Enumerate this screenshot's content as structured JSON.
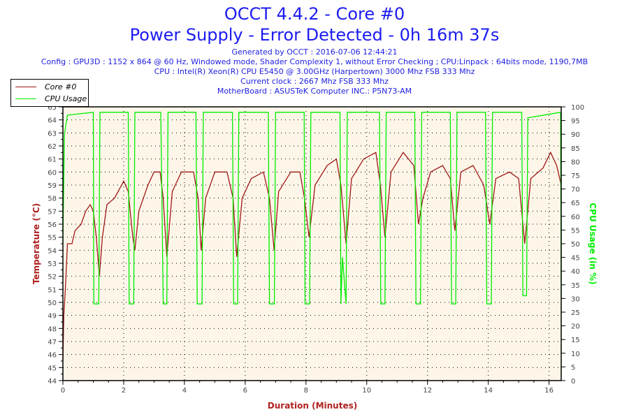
{
  "header": {
    "title": "OCCT 4.4.2 - Core #0",
    "subtitle": "Power Supply - Error Detected - 0h 16m 37s",
    "info": [
      "Generated by OCCT : 2016-07-06 12:44:21",
      "Config : GPU3D : 1152 x 864 @ 60 Hz, Windowed mode, Shader Complexity 1, without Error Checking ; CPU:Linpack : 64bits mode, 1190,7MB",
      "CPU : Intel(R) Xeon(R) CPU E5450 @ 3.00GHz (Harpertown) 3000 Mhz FSB 333 Mhz",
      "Current clock : 2667 Mhz FSB 333 Mhz",
      "MotherBoard : ASUSTeK Computer INC.: P5N73-AM"
    ]
  },
  "colors": {
    "temperature": "#a01818",
    "cpu": "#00ee00",
    "title": "#1c1cf0",
    "plot_bg": "#fdf6e8",
    "xlabel": "#b02020"
  },
  "chart_data": {
    "type": "line",
    "xlabel": "Duration (Minutes)",
    "ylabel": "Temperature (°C)",
    "y2label": "CPU Usage (in %)",
    "xlim": [
      0,
      16.4
    ],
    "ylim": [
      44,
      65
    ],
    "y2lim": [
      0,
      100
    ],
    "xticks": [
      0,
      2,
      4,
      6,
      8,
      10,
      12,
      14,
      16
    ],
    "yticks": [
      44,
      45,
      46,
      47,
      48,
      49,
      50,
      51,
      52,
      53,
      54,
      55,
      56,
      57,
      58,
      59,
      60,
      61,
      62,
      63,
      64,
      65
    ],
    "y2ticks": [
      0,
      5,
      10,
      15,
      20,
      25,
      30,
      35,
      40,
      45,
      50,
      55,
      60,
      65,
      70,
      75,
      80,
      85,
      90,
      95,
      100
    ],
    "grid": true,
    "legend": "top-left",
    "series": [
      {
        "name": "Core #0",
        "axis": "left",
        "points": [
          [
            0,
            45.5
          ],
          [
            0.03,
            49
          ],
          [
            0.08,
            51
          ],
          [
            0.15,
            54.5
          ],
          [
            0.3,
            54.5
          ],
          [
            0.4,
            55.5
          ],
          [
            0.6,
            56
          ],
          [
            0.75,
            57
          ],
          [
            0.9,
            57.5
          ],
          [
            1.0,
            57
          ],
          [
            1.1,
            55
          ],
          [
            1.2,
            52
          ],
          [
            1.3,
            55
          ],
          [
            1.45,
            57.5
          ],
          [
            1.7,
            58
          ],
          [
            2.0,
            59.3
          ],
          [
            2.15,
            58.5
          ],
          [
            2.3,
            55
          ],
          [
            2.37,
            54
          ],
          [
            2.5,
            57
          ],
          [
            2.8,
            59
          ],
          [
            3.0,
            60
          ],
          [
            3.2,
            60
          ],
          [
            3.3,
            58
          ],
          [
            3.42,
            53.5
          ],
          [
            3.6,
            58.5
          ],
          [
            3.9,
            60
          ],
          [
            4.3,
            60
          ],
          [
            4.45,
            58
          ],
          [
            4.55,
            54
          ],
          [
            4.7,
            58
          ],
          [
            5.0,
            60
          ],
          [
            5.4,
            60
          ],
          [
            5.6,
            58
          ],
          [
            5.72,
            53.5
          ],
          [
            5.9,
            58
          ],
          [
            6.2,
            59.5
          ],
          [
            6.6,
            60
          ],
          [
            6.8,
            58
          ],
          [
            6.95,
            54
          ],
          [
            7.1,
            58.5
          ],
          [
            7.5,
            60
          ],
          [
            7.8,
            60
          ],
          [
            7.95,
            58
          ],
          [
            8.1,
            55
          ],
          [
            8.3,
            59
          ],
          [
            8.7,
            60.5
          ],
          [
            9.0,
            61
          ],
          [
            9.15,
            59
          ],
          [
            9.32,
            54.5
          ],
          [
            9.5,
            59.5
          ],
          [
            9.9,
            61
          ],
          [
            10.3,
            61.5
          ],
          [
            10.45,
            59
          ],
          [
            10.6,
            55
          ],
          [
            10.8,
            60
          ],
          [
            11.2,
            61.5
          ],
          [
            11.55,
            60.5
          ],
          [
            11.7,
            56
          ],
          [
            11.85,
            58
          ],
          [
            12.1,
            60
          ],
          [
            12.5,
            60.5
          ],
          [
            12.75,
            59.5
          ],
          [
            12.9,
            55.5
          ],
          [
            13.1,
            60
          ],
          [
            13.5,
            60.5
          ],
          [
            13.85,
            59
          ],
          [
            14.05,
            56
          ],
          [
            14.25,
            59.5
          ],
          [
            14.7,
            60
          ],
          [
            15.0,
            59.5
          ],
          [
            15.2,
            54.5
          ],
          [
            15.4,
            59.5
          ],
          [
            15.8,
            60.3
          ],
          [
            16.05,
            61.5
          ],
          [
            16.25,
            60.5
          ],
          [
            16.4,
            59
          ]
        ]
      },
      {
        "name": "CPU Usage",
        "axis": "right",
        "points": [
          [
            0,
            50
          ],
          [
            0.05,
            90
          ],
          [
            0.15,
            97
          ],
          [
            1.0,
            98
          ],
          [
            1.02,
            28
          ],
          [
            1.18,
            28
          ],
          [
            1.22,
            98
          ],
          [
            2.15,
            98
          ],
          [
            2.18,
            28
          ],
          [
            2.33,
            28
          ],
          [
            2.37,
            98
          ],
          [
            3.22,
            98
          ],
          [
            3.25,
            75
          ],
          [
            3.3,
            28
          ],
          [
            3.42,
            28
          ],
          [
            3.46,
            98
          ],
          [
            4.38,
            98
          ],
          [
            4.42,
            28
          ],
          [
            4.58,
            28
          ],
          [
            4.62,
            98
          ],
          [
            5.58,
            98
          ],
          [
            5.62,
            28
          ],
          [
            5.75,
            28
          ],
          [
            5.79,
            98
          ],
          [
            6.76,
            98
          ],
          [
            6.8,
            28
          ],
          [
            6.96,
            28
          ],
          [
            7.0,
            98
          ],
          [
            7.94,
            98
          ],
          [
            7.97,
            28
          ],
          [
            8.12,
            28
          ],
          [
            8.16,
            98
          ],
          [
            9.12,
            98
          ],
          [
            9.15,
            28
          ],
          [
            9.2,
            45
          ],
          [
            9.32,
            28
          ],
          [
            9.36,
            98
          ],
          [
            10.42,
            98
          ],
          [
            10.46,
            28
          ],
          [
            10.6,
            28
          ],
          [
            10.64,
            98
          ],
          [
            11.58,
            98
          ],
          [
            11.62,
            28
          ],
          [
            11.77,
            28
          ],
          [
            11.81,
            98
          ],
          [
            12.75,
            98
          ],
          [
            12.79,
            28
          ],
          [
            12.93,
            28
          ],
          [
            12.97,
            98
          ],
          [
            13.91,
            98
          ],
          [
            13.95,
            28
          ],
          [
            14.1,
            28
          ],
          [
            14.14,
            98
          ],
          [
            15.1,
            98
          ],
          [
            15.14,
            31
          ],
          [
            15.26,
            31
          ],
          [
            15.3,
            96
          ],
          [
            16.38,
            98
          ],
          [
            16.4,
            30
          ]
        ]
      }
    ]
  }
}
